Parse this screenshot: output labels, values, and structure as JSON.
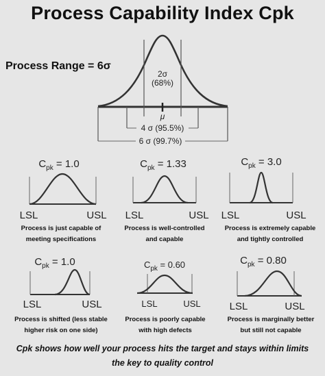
{
  "title": "Process Capability Index Cpk",
  "main": {
    "process_range": "Process Range = 6σ",
    "two_sigma": "2σ",
    "two_sigma_pct": "(68%)",
    "mu": "μ",
    "four_sigma": "4 σ (95.5%)",
    "six_sigma": "6 σ (99.7%)"
  },
  "panels": [
    {
      "cpk": "1.0",
      "lsl": "LSL",
      "usl": "USL",
      "desc1": "Process is just capable of",
      "desc2": "meeting specifications"
    },
    {
      "cpk": "1.33",
      "lsl": "LSL",
      "usl": "USL",
      "desc1": "Process is well-controlled",
      "desc2": "and capable"
    },
    {
      "cpk": "3.0",
      "lsl": "LSL",
      "usl": "USL",
      "desc1": "Process is extremely capable",
      "desc2": "and tightly controlled"
    },
    {
      "cpk": "1.0",
      "lsl": "LSL",
      "usl": "USL",
      "desc1": "Process is shifted (less stable",
      "desc2": "higher risk on one side)"
    },
    {
      "cpk": "0.60",
      "lsl": "LSL",
      "usl": "USL",
      "desc1": "Process is poorly capable",
      "desc2": "with high defects"
    },
    {
      "cpk": "0.80",
      "lsl": "LSL",
      "usl": "USL",
      "desc1": "Process is marginally better",
      "desc2": "but still not capable"
    }
  ],
  "cpk_prefix": "C",
  "cpk_subscript": "pk",
  "footer": {
    "line1": "Cpk shows how well your process hits the target and stays within limits",
    "line2": "the key to quality control"
  }
}
